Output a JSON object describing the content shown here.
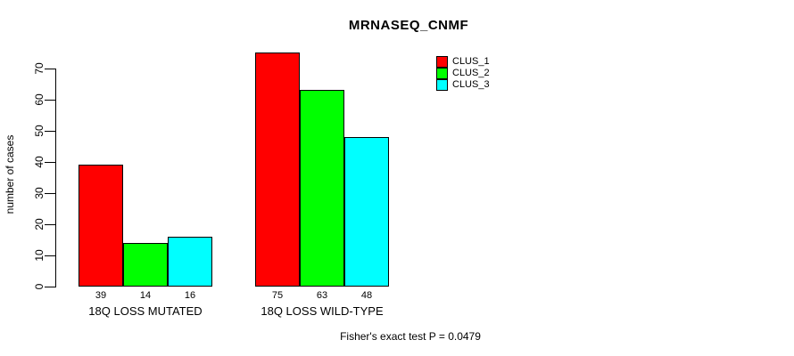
{
  "title": "MRNASEQ_CNMF",
  "footer_note": "Fisher's exact test P = 0.0479",
  "colors": {
    "background": "#ffffff",
    "axis": "#000000",
    "clus_1": "#ff0000",
    "clus_2": "#00ff00",
    "clus_3": "#00ffff"
  },
  "chart_data": {
    "type": "bar",
    "title": "MRNASEQ_CNMF",
    "xlabel": "",
    "ylabel": "number of cases",
    "ylim": [
      0,
      70
    ],
    "yticks": [
      0,
      10,
      20,
      30,
      40,
      50,
      60,
      70
    ],
    "grid": false,
    "legend_position": "top-right",
    "categories": [
      "18Q LOSS MUTATED",
      "18Q LOSS WILD-TYPE"
    ],
    "series": [
      {
        "name": "CLUS_1",
        "color": "#ff0000",
        "values": [
          39,
          75
        ]
      },
      {
        "name": "CLUS_2",
        "color": "#00ff00",
        "values": [
          14,
          63
        ]
      },
      {
        "name": "CLUS_3",
        "color": "#00ffff",
        "values": [
          16,
          48
        ]
      }
    ],
    "bar_value_labels": [
      [
        39,
        14,
        16
      ],
      [
        75,
        63,
        48
      ]
    ],
    "annotation": "Fisher's exact test P = 0.0479"
  }
}
